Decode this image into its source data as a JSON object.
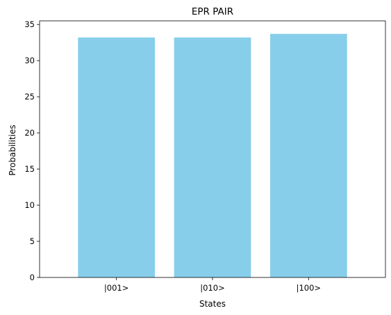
{
  "chart_data": {
    "type": "bar",
    "title": "EPR PAIR",
    "xlabel": "States",
    "ylabel": "Probabilities",
    "categories": [
      "|001>",
      "|010>",
      "|100>"
    ],
    "values": [
      33.2,
      33.2,
      33.7
    ],
    "ylim": [
      0,
      35.5
    ],
    "yticks": [
      0,
      5,
      10,
      15,
      20,
      25,
      30,
      35
    ],
    "bar_color": "#87CEEB",
    "grid": false,
    "legend": "none"
  }
}
